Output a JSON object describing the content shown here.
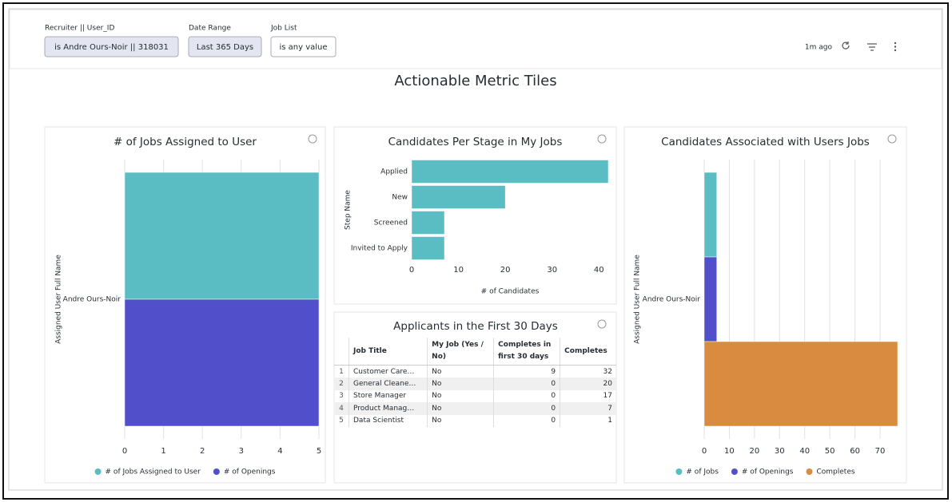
{
  "filters": [
    {
      "label": "Recruiter || User_ID",
      "value": "is Andre Ours-Noir || 318031"
    },
    {
      "label": "Date Range",
      "value": "Last 365 Days"
    },
    {
      "label": "Job List",
      "value": "is any value"
    }
  ],
  "updated": "1m ago",
  "dashboard_title": "Actionable Metric Tiles",
  "chart_data": [
    {
      "type": "hbar",
      "title": "# of Jobs Assigned to User",
      "y_label": "Assigned User Full Name",
      "categories": [
        "Andre Ours-Noir"
      ],
      "series": [
        {
          "name": "# of Jobs Assigned to User",
          "color": "#5bbdc4",
          "values": [
            5
          ]
        },
        {
          "name": "# of Openings",
          "color": "#524fcb",
          "values": [
            5
          ]
        }
      ],
      "xlim": [
        0,
        5
      ],
      "xticks": [
        0,
        1,
        2,
        3,
        4,
        5
      ],
      "grid": true,
      "legend": "bottom"
    },
    {
      "type": "hbar",
      "title": "Candidates Per Stage in My Jobs",
      "x_label": "# of Candidates",
      "y_label": "Step Name",
      "categories": [
        "Applied",
        "New",
        "Screened",
        "Invited to Apply"
      ],
      "values": [
        42,
        20,
        7,
        7
      ],
      "color": "#5bbdc4",
      "xlim": [
        0,
        42
      ],
      "xticks": [
        0,
        10,
        20,
        30,
        40
      ],
      "grid": false
    },
    {
      "type": "hbar",
      "title": "Candidates Associated with Users Jobs",
      "y_label": "Assigned User Full Name",
      "categories": [
        "Andre Ours-Noir"
      ],
      "series": [
        {
          "name": "# of Jobs",
          "color": "#5bbdc4",
          "values": [
            5
          ]
        },
        {
          "name": "# of Openings",
          "color": "#524fcb",
          "values": [
            5
          ]
        },
        {
          "name": "Completes",
          "color": "#d98b3f",
          "values": [
            77
          ]
        }
      ],
      "xlim": [
        0,
        77
      ],
      "xticks": [
        0,
        10,
        20,
        30,
        40,
        50,
        60,
        70
      ],
      "grid": true,
      "legend": "bottom"
    }
  ],
  "table": {
    "title": "Applicants in the First 30 Days",
    "columns": [
      "Job Title",
      "My Job (Yes / No)",
      "Completes in first 30 days",
      "Completes"
    ],
    "rows": [
      [
        1,
        "Customer Care…",
        "No",
        9,
        32
      ],
      [
        2,
        "General Cleane…",
        "No",
        0,
        20
      ],
      [
        3,
        "Store Manager",
        "No",
        0,
        17
      ],
      [
        4,
        "Product Manag…",
        "No",
        0,
        7
      ],
      [
        5,
        "Data Scientist",
        "No",
        0,
        1
      ]
    ]
  }
}
